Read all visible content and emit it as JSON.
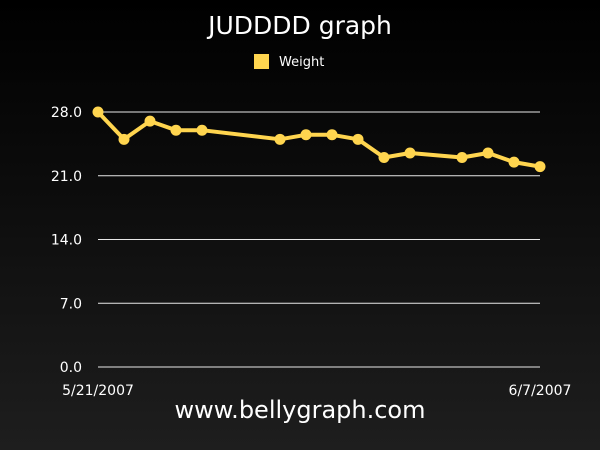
{
  "chart_data": {
    "type": "line",
    "title": "JUDDDD graph",
    "legend": {
      "position": "top-center"
    },
    "x_labels": [
      "5/21/2007",
      "6/7/2007"
    ],
    "x_range_days": [
      0,
      17
    ],
    "ylim": [
      0,
      28
    ],
    "yticks": [
      "0.0",
      "7.0",
      "14.0",
      "21.0",
      "28.0"
    ],
    "grid": true,
    "series": [
      {
        "name": "Weight",
        "color": "#ffd54f",
        "points": [
          {
            "x": "5/21/2007",
            "day": 0,
            "y": 28.0
          },
          {
            "x": "5/22/2007",
            "day": 1,
            "y": 25.0
          },
          {
            "x": "5/23/2007",
            "day": 2,
            "y": 27.0
          },
          {
            "x": "5/24/2007",
            "day": 3,
            "y": 26.0
          },
          {
            "x": "5/25/2007",
            "day": 4,
            "y": 26.0
          },
          {
            "x": "5/28/2007",
            "day": 7,
            "y": 25.0
          },
          {
            "x": "5/29/2007",
            "day": 8,
            "y": 25.5
          },
          {
            "x": "5/30/2007",
            "day": 9,
            "y": 25.5
          },
          {
            "x": "5/31/2007",
            "day": 10,
            "y": 25.0
          },
          {
            "x": "6/1/2007",
            "day": 11,
            "y": 23.0
          },
          {
            "x": "6/2/2007",
            "day": 12,
            "y": 23.5
          },
          {
            "x": "6/4/2007",
            "day": 14,
            "y": 23.0
          },
          {
            "x": "6/5/2007",
            "day": 15,
            "y": 23.5
          },
          {
            "x": "6/6/2007",
            "day": 16,
            "y": 22.5
          },
          {
            "x": "6/7/2007",
            "day": 17,
            "y": 22.0
          }
        ]
      }
    ]
  },
  "footer": {
    "site": "www.bellygraph.com"
  }
}
